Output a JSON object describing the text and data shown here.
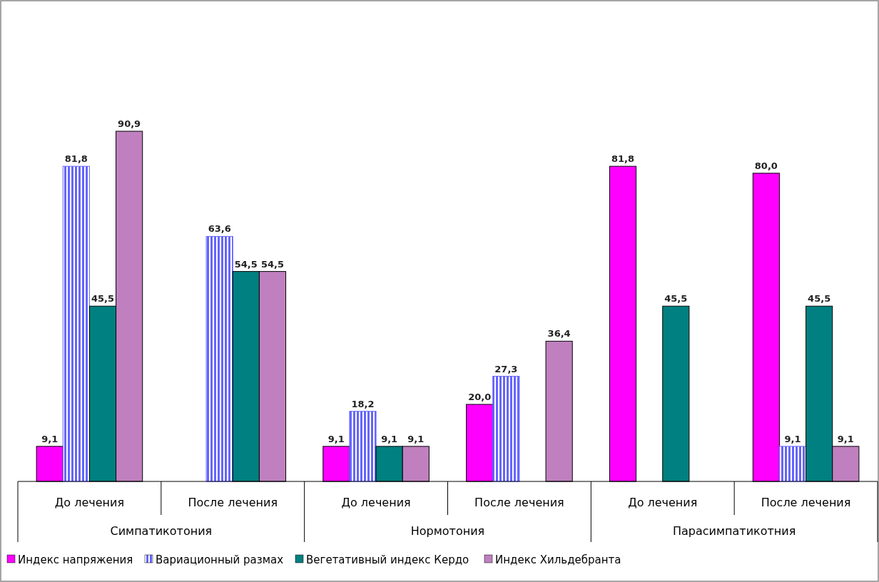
{
  "chart_data": {
    "type": "bar",
    "categories": [
      "До лечения",
      "После лечения",
      "До лечения",
      "После лечения",
      "До лечения",
      "После лечения"
    ],
    "annotations": [
      "Симпатикотония",
      "Нормотония",
      "Парасимпатикотния"
    ],
    "legend": "bottom",
    "series": [
      {
        "name": "Индекс напряжения",
        "color": "#ff00ff",
        "values": [
          9.1,
          null,
          9.1,
          20.0,
          81.8,
          80.0
        ],
        "value_labels": [
          "9,1",
          null,
          "9,1",
          "20,0",
          "81,8",
          "80,0"
        ]
      },
      {
        "name": "Вариационный размах",
        "color": "#6666ff",
        "values": [
          81.8,
          63.6,
          18.2,
          27.3,
          null,
          9.1
        ],
        "value_labels": [
          "81,8",
          "63,6",
          "18,2",
          "27,3",
          null,
          "9,1"
        ]
      },
      {
        "name": "Вегетативный индекс Кердо",
        "color": "#008080",
        "values": [
          45.5,
          54.5,
          9.1,
          null,
          45.5,
          45.5
        ],
        "value_labels": [
          "45,5",
          "54,5",
          "9,1",
          null,
          "45,5",
          "45,5"
        ]
      },
      {
        "name": "Индекс Хильдебранта",
        "color": "#c080c0",
        "values": [
          90.9,
          54.5,
          9.1,
          36.4,
          null,
          9.1
        ],
        "value_labels": [
          "90,9",
          "54,5",
          "9,1",
          "36,4",
          null,
          "9,1"
        ]
      }
    ]
  }
}
